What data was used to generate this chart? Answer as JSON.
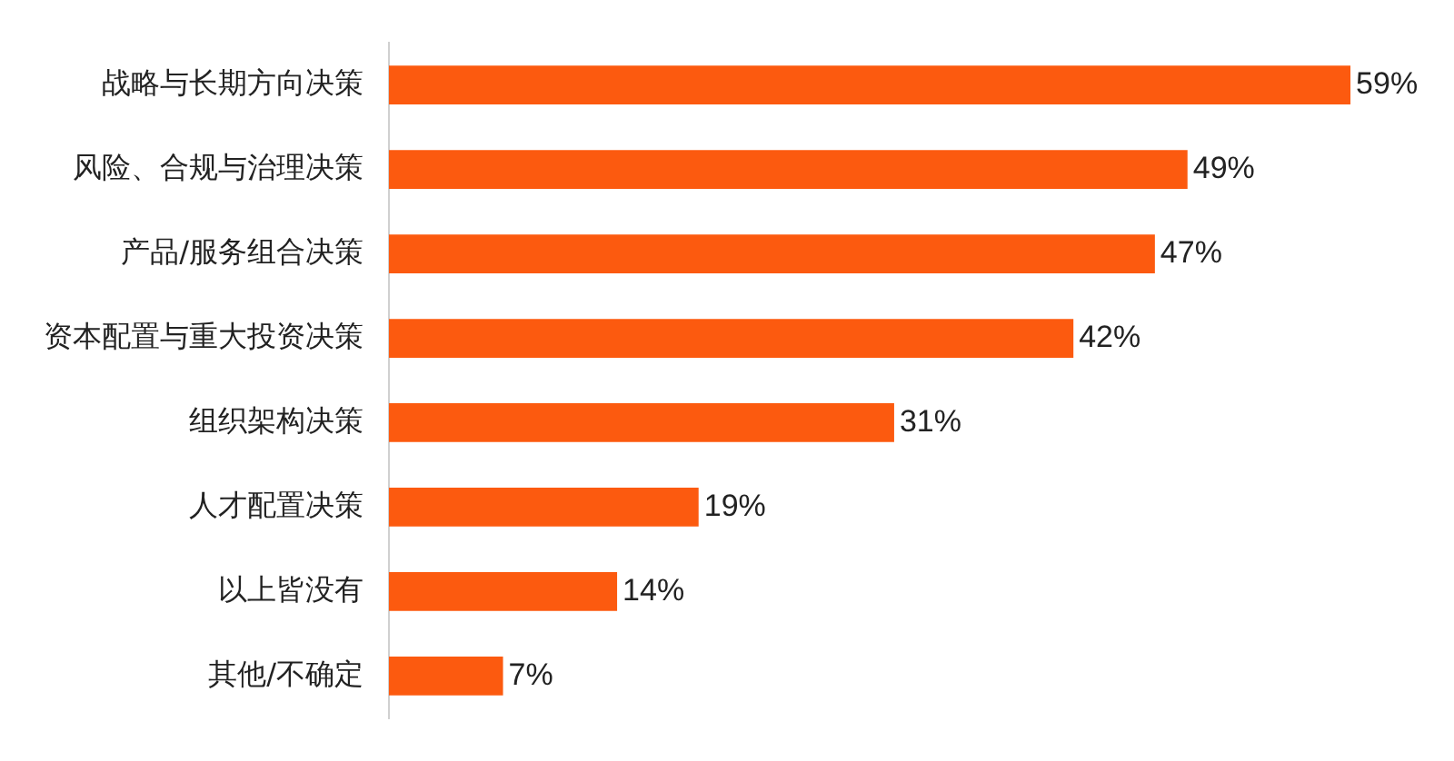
{
  "chart_data": {
    "type": "bar",
    "orientation": "horizontal",
    "categories": [
      "战略与长期方向决策",
      "风险、合规与治理决策",
      "产品/服务组合决策",
      "资本配置与重大投资决策",
      "组织架构决策",
      "人才配置决策",
      "以上皆没有",
      "其他/不确定"
    ],
    "values": [
      59,
      49,
      47,
      42,
      31,
      19,
      14,
      7
    ],
    "color": "#fc5a0f",
    "value_labels": [
      "59%",
      "49%",
      "47%",
      "42%",
      "31%",
      "19%",
      "14%",
      "7%"
    ]
  }
}
